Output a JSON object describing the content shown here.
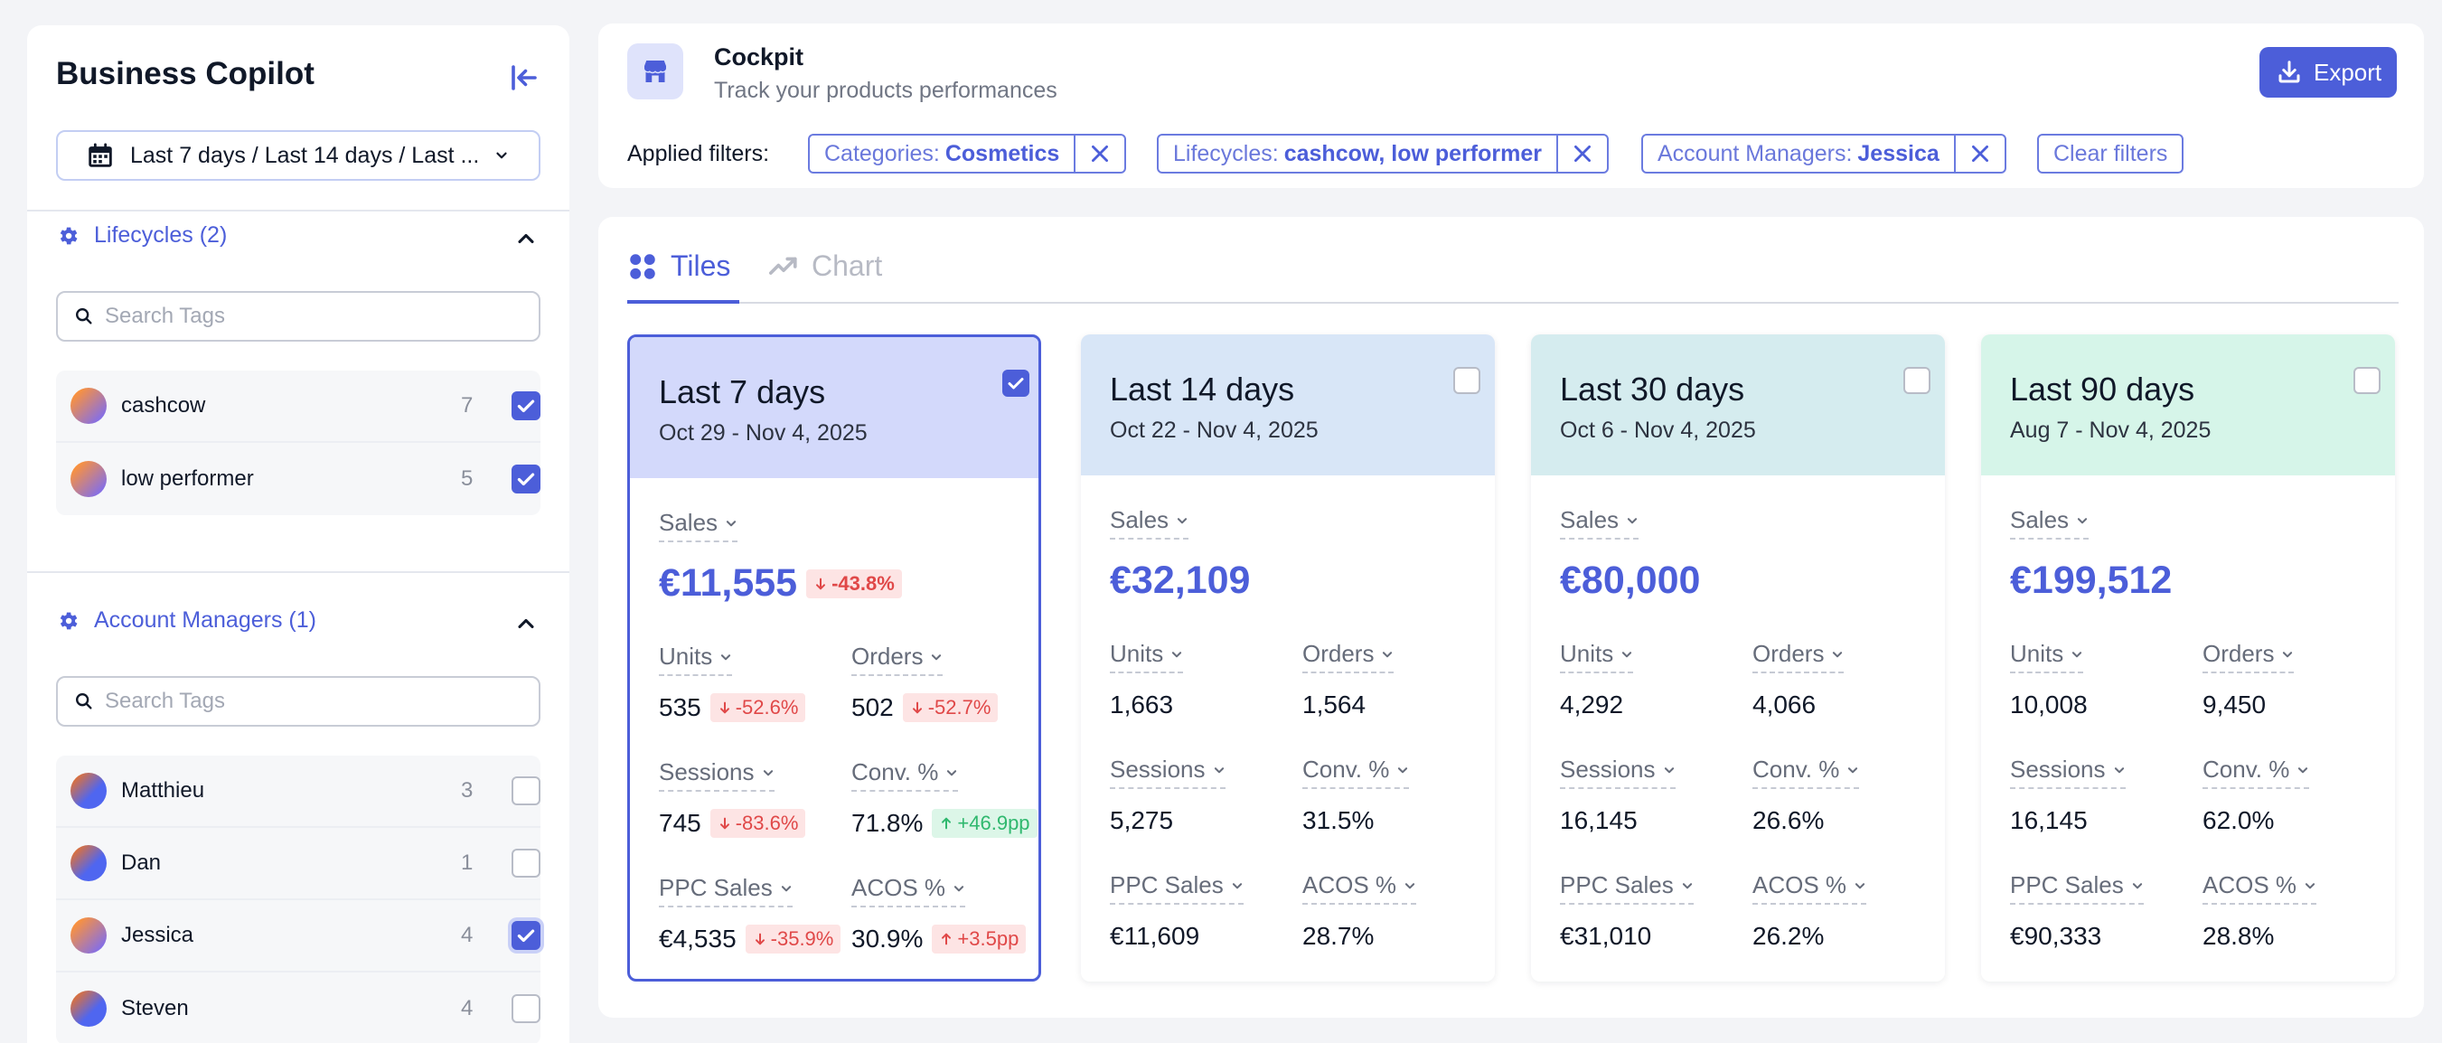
{
  "sidebar": {
    "title": "Business Copilot",
    "date_range": "Last 7 days / Last 14 days / Last ...",
    "lifecycles": {
      "title": "Lifecycles (2)",
      "search_placeholder": "Search Tags",
      "items": [
        {
          "name": "cashcow",
          "count": "7",
          "checked": true
        },
        {
          "name": "low performer",
          "count": "5",
          "checked": true
        }
      ]
    },
    "account_managers": {
      "title": "Account Managers (1)",
      "search_placeholder": "Search Tags",
      "items": [
        {
          "name": "Matthieu",
          "count": "3",
          "checked": false
        },
        {
          "name": "Dan",
          "count": "1",
          "checked": false
        },
        {
          "name": "Jessica",
          "count": "4",
          "checked": true
        },
        {
          "name": "Steven",
          "count": "4",
          "checked": false
        }
      ]
    }
  },
  "header": {
    "title": "Cockpit",
    "subtitle": "Track your products performances",
    "export_label": "Export",
    "applied_filters_label": "Applied filters:",
    "filters": [
      {
        "key": "Categories:",
        "value": "Cosmetics"
      },
      {
        "key": "Lifecycles:",
        "value": "cashcow, low performer"
      },
      {
        "key": "Account Managers:",
        "value": "Jessica"
      }
    ],
    "clear_filters_label": "Clear filters"
  },
  "tabs": [
    {
      "label": "Tiles",
      "active": true
    },
    {
      "label": "Chart",
      "active": false
    }
  ],
  "metric_labels": {
    "sales": "Sales",
    "units": "Units",
    "orders": "Orders",
    "sessions": "Sessions",
    "conv": "Conv. %",
    "ppc_sales": "PPC Sales",
    "acos": "ACOS %"
  },
  "tiles": [
    {
      "title": "Last 7 days",
      "date": "Oct 29 - Nov 4, 2025",
      "checked": true,
      "sales": "€11,555",
      "sales_delta": "-43.8%",
      "units": "535",
      "units_delta": "-52.6%",
      "orders": "502",
      "orders_delta": "-52.7%",
      "sessions": "745",
      "sessions_delta": "-83.6%",
      "conv": "71.8%",
      "conv_delta": "+46.9pp",
      "ppc_sales": "€4,535",
      "ppc_sales_delta": "-35.9%",
      "acos": "30.9%",
      "acos_delta": "+3.5pp"
    },
    {
      "title": "Last 14 days",
      "date": "Oct 22 - Nov 4, 2025",
      "checked": false,
      "sales": "€32,109",
      "units": "1,663",
      "orders": "1,564",
      "sessions": "5,275",
      "conv": "31.5%",
      "ppc_sales": "€11,609",
      "acos": "28.7%"
    },
    {
      "title": "Last 30 days",
      "date": "Oct 6 - Nov 4, 2025",
      "checked": false,
      "sales": "€80,000",
      "units": "4,292",
      "orders": "4,066",
      "sessions": "16,145",
      "conv": "26.6%",
      "ppc_sales": "€31,010",
      "acos": "26.2%"
    },
    {
      "title": "Last 90 days",
      "date": "Aug 7 - Nov 4, 2025",
      "checked": false,
      "sales": "€199,512",
      "units": "10,008",
      "orders": "9,450",
      "sessions": "16,145",
      "conv": "62.0%",
      "ppc_sales": "€90,333",
      "acos": "28.8%"
    }
  ],
  "colors": {
    "accent": "#4c5ed9",
    "tile_headers": [
      "#d3d9fb",
      "#d8e6f7",
      "#d5ecef",
      "#d6f5e9"
    ],
    "negative": "#e04848",
    "positive": "#2fb86e"
  }
}
